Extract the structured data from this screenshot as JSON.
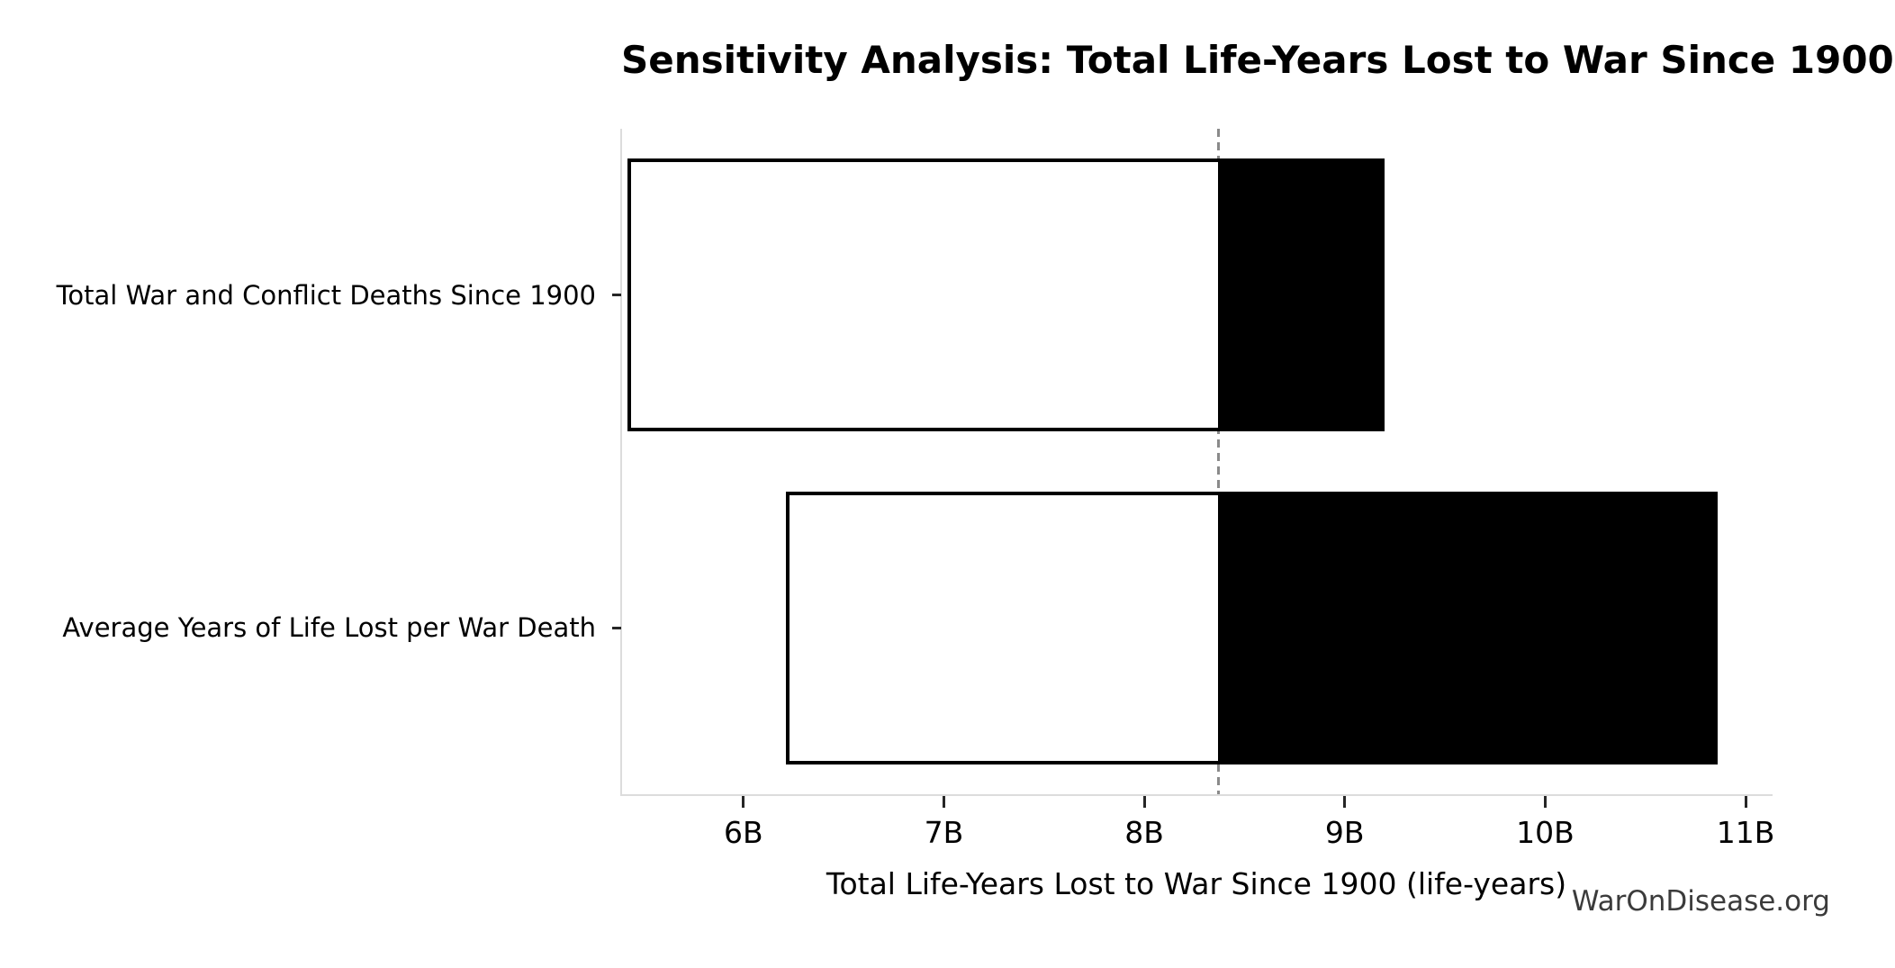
{
  "title": "Sensitivity Analysis: Total Life-Years Lost to War Since 1900",
  "watermark": "WarOnDisease.org",
  "chart_data": {
    "type": "bar",
    "subtype": "tornado-sensitivity",
    "orientation": "horizontal",
    "title": "Sensitivity Analysis: Total Life-Years Lost to War Since 1900",
    "xlabel": "Total Life-Years Lost to War Since 1900 (life-years)",
    "ylabel": "",
    "unit": "billion life-years",
    "categories": [
      "Total War and Conflict Deaths Since 1900",
      "Average Years of Life Lost per War Death"
    ],
    "series": [
      {
        "name": "Total War and Conflict Deaths Since 1900",
        "low": 5.42,
        "high": 9.2
      },
      {
        "name": "Average Years of Life Lost per War Death",
        "low": 6.21,
        "high": 10.86
      }
    ],
    "baseline": 8.37,
    "xlim": [
      5.39,
      11.13
    ],
    "xticks": [
      {
        "value": 6,
        "label": "6B"
      },
      {
        "value": 7,
        "label": "7B"
      },
      {
        "value": 8,
        "label": "8B"
      },
      {
        "value": 9,
        "label": "9B"
      },
      {
        "value": 10,
        "label": "10B"
      },
      {
        "value": 11,
        "label": "11B"
      }
    ],
    "grid": false,
    "legend": "none",
    "bar_height_fraction": 0.41,
    "colors": {
      "low_side_fill": "#ffffff",
      "high_side_fill": "#000000",
      "bar_border": "#000000",
      "baseline_dash": "#8a8a8a",
      "spine": "#dcdcdc",
      "tick": "#262626",
      "text": "#000000",
      "watermark": "#3b3b3b",
      "background": "#ffffff"
    }
  }
}
